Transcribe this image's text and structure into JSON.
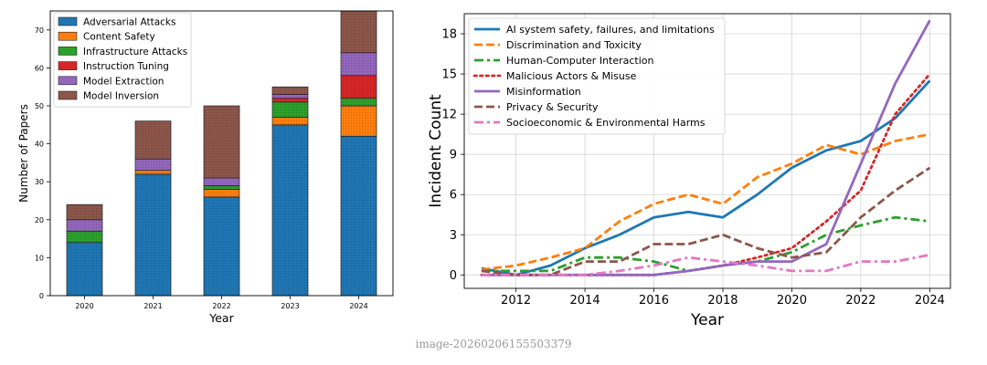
{
  "caption": "image-20260206155503379",
  "chart_data": [
    {
      "type": "bar",
      "stacked": true,
      "categories": [
        "2020",
        "2021",
        "2022",
        "2023",
        "2024"
      ],
      "xlabel": "Year",
      "ylabel": "Number of Papers",
      "ylim": [
        0,
        75
      ],
      "yticks": [
        0,
        10,
        20,
        30,
        40,
        50,
        60,
        70
      ],
      "legend_position": "top-left",
      "series": [
        {
          "name": "Adversarial Attacks",
          "color": "#1f77b4",
          "values": [
            14,
            32,
            26,
            45,
            42
          ]
        },
        {
          "name": "Content Safety",
          "color": "#ff7f0e",
          "values": [
            0,
            1,
            2,
            2,
            8
          ]
        },
        {
          "name": "Infrastructure Attacks",
          "color": "#2ca02c",
          "values": [
            3,
            0,
            1,
            4,
            2
          ]
        },
        {
          "name": "Instruction Tuning",
          "color": "#d62728",
          "values": [
            0,
            0,
            0,
            1,
            6
          ]
        },
        {
          "name": "Model Extraction",
          "color": "#9467bd",
          "values": [
            3,
            3,
            2,
            1,
            6
          ]
        },
        {
          "name": "Model Inversion",
          "color": "#8c564b",
          "values": [
            4,
            10,
            19,
            2,
            11
          ]
        }
      ]
    },
    {
      "type": "line",
      "x": [
        2011,
        2012,
        2013,
        2014,
        2015,
        2016,
        2017,
        2018,
        2019,
        2020,
        2021,
        2022,
        2023,
        2024
      ],
      "xticks": [
        2012,
        2014,
        2016,
        2018,
        2020,
        2022,
        2024
      ],
      "xlim": [
        2010.5,
        2024.6
      ],
      "ylim": [
        -1.0,
        19.5
      ],
      "yticks": [
        0,
        3,
        6,
        9,
        12,
        15,
        18
      ],
      "xlabel": "Year",
      "ylabel": "Incident Count",
      "grid": true,
      "legend_position": "top-left",
      "series": [
        {
          "name": "AI system safety, failures, and limitations",
          "color": "#1f77b4",
          "style": "solid",
          "values": [
            0.5,
            0.0,
            0.7,
            2.0,
            3.0,
            4.3,
            4.7,
            4.3,
            6.0,
            8.0,
            9.3,
            10.0,
            11.7,
            14.5
          ]
        },
        {
          "name": "Discrimination and Toxicity",
          "color": "#ff7f0e",
          "style": "dashed",
          "values": [
            0.4,
            0.7,
            1.3,
            2.0,
            4.0,
            5.3,
            6.0,
            5.3,
            7.3,
            8.3,
            9.7,
            9.0,
            10.0,
            10.5
          ]
        },
        {
          "name": "Human-Computer Interaction",
          "color": "#2ca02c",
          "style": "dashdot",
          "values": [
            0.3,
            0.3,
            0.3,
            1.3,
            1.3,
            1.0,
            0.3,
            0.7,
            1.0,
            1.7,
            3.0,
            3.7,
            4.3,
            4.0
          ]
        },
        {
          "name": "Malicious Actors & Misuse",
          "color": "#d62728",
          "style": "dotted",
          "values": [
            0.0,
            0.0,
            0.0,
            0.0,
            0.0,
            0.0,
            0.3,
            0.7,
            1.3,
            2.0,
            4.0,
            6.3,
            12.0,
            15.0
          ]
        },
        {
          "name": "Misinformation",
          "color": "#9467bd",
          "style": "solid",
          "values": [
            0.0,
            0.0,
            0.0,
            0.0,
            0.0,
            0.0,
            0.3,
            0.7,
            1.0,
            1.0,
            2.3,
            8.3,
            14.3,
            19.0
          ]
        },
        {
          "name": "Privacy & Security",
          "color": "#8c564b",
          "style": "dashed",
          "values": [
            0.3,
            0.0,
            0.0,
            1.0,
            1.0,
            2.3,
            2.3,
            3.0,
            2.0,
            1.3,
            1.7,
            4.3,
            6.3,
            8.0
          ]
        },
        {
          "name": "Socioeconomic & Environmental Harms",
          "color": "#e377c2",
          "style": "dashdot",
          "values": [
            0.0,
            0.0,
            0.0,
            0.0,
            0.3,
            0.7,
            1.3,
            1.0,
            0.7,
            0.3,
            0.3,
            1.0,
            1.0,
            1.5
          ]
        }
      ]
    }
  ]
}
